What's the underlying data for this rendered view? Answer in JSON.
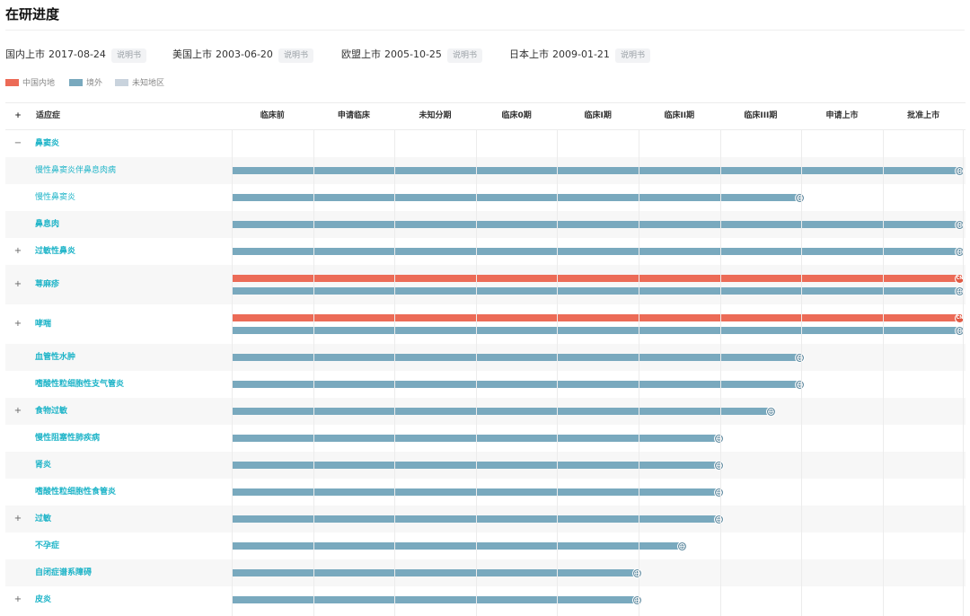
{
  "title": "在研进度",
  "launches": [
    {
      "label": "国内上市",
      "date": "2017-08-24",
      "doc": "说明书"
    },
    {
      "label": "美国上市",
      "date": "2003-06-20",
      "doc": "说明书"
    },
    {
      "label": "欧盟上市",
      "date": "2005-10-25",
      "doc": "说明书"
    },
    {
      "label": "日本上市",
      "date": "2009-01-21",
      "doc": "说明书"
    }
  ],
  "legend": [
    {
      "label": "中国内地",
      "color": "#ec6b57"
    },
    {
      "label": "境外",
      "color": "#79a9be"
    },
    {
      "label": "未知地区",
      "color": "#c9d3dd"
    }
  ],
  "header": {
    "toggle": "+",
    "indication": "适应症",
    "stages": [
      "临床前",
      "申请临床",
      "未知分期",
      "临床0期",
      "临床I期",
      "临床II期",
      "临床III期",
      "申请上市",
      "批准上市"
    ]
  },
  "rows": [
    {
      "name": "鼻窦炎",
      "toggle": "−",
      "bold": true,
      "bars": []
    },
    {
      "name": "慢性鼻窦炎伴鼻息肉病",
      "toggle": "",
      "bold": false,
      "bars": [
        {
          "region": "overseas",
          "stage": 9
        }
      ]
    },
    {
      "name": "慢性鼻窦炎",
      "toggle": "",
      "bold": false,
      "bars": [
        {
          "region": "overseas",
          "stage": 7
        }
      ]
    },
    {
      "name": "鼻息肉",
      "toggle": "",
      "bold": true,
      "bars": [
        {
          "region": "overseas",
          "stage": 9
        }
      ]
    },
    {
      "name": "过敏性鼻炎",
      "toggle": "+",
      "bold": true,
      "bars": [
        {
          "region": "overseas",
          "stage": 9
        }
      ]
    },
    {
      "name": "荨麻疹",
      "toggle": "+",
      "bold": true,
      "bars": [
        {
          "region": "cn",
          "stage": 9
        },
        {
          "region": "overseas",
          "stage": 9
        }
      ]
    },
    {
      "name": "哮喘",
      "toggle": "+",
      "bold": true,
      "bars": [
        {
          "region": "cn",
          "stage": 9
        },
        {
          "region": "overseas",
          "stage": 9
        }
      ]
    },
    {
      "name": "血管性水肿",
      "toggle": "",
      "bold": true,
      "bars": [
        {
          "region": "overseas",
          "stage": 7
        }
      ]
    },
    {
      "name": "嗜酸性粒细胞性支气管炎",
      "toggle": "",
      "bold": true,
      "bars": [
        {
          "region": "overseas",
          "stage": 7
        }
      ]
    },
    {
      "name": "食物过敏",
      "toggle": "+",
      "bold": true,
      "bars": [
        {
          "region": "overseas",
          "stage": 6.65
        }
      ]
    },
    {
      "name": "慢性阻塞性肺疾病",
      "toggle": "",
      "bold": true,
      "bars": [
        {
          "region": "overseas",
          "stage": 6
        }
      ]
    },
    {
      "name": "肾炎",
      "toggle": "",
      "bold": true,
      "bars": [
        {
          "region": "overseas",
          "stage": 6
        }
      ]
    },
    {
      "name": "嗜酸性粒细胞性食管炎",
      "toggle": "",
      "bold": true,
      "bars": [
        {
          "region": "overseas",
          "stage": 6
        }
      ]
    },
    {
      "name": "过敏",
      "toggle": "+",
      "bold": true,
      "bars": [
        {
          "region": "overseas",
          "stage": 6
        }
      ]
    },
    {
      "name": "不孕症",
      "toggle": "",
      "bold": true,
      "bars": [
        {
          "region": "overseas",
          "stage": 5.55
        }
      ]
    },
    {
      "name": "自闭症谱系障碍",
      "toggle": "",
      "bold": true,
      "bars": [
        {
          "region": "overseas",
          "stage": 5
        }
      ]
    },
    {
      "name": "皮炎",
      "toggle": "+",
      "bold": true,
      "bars": [
        {
          "region": "overseas",
          "stage": 5
        }
      ]
    }
  ],
  "badge_text": {
    "cn": "CN",
    "overseas": "🌐"
  }
}
